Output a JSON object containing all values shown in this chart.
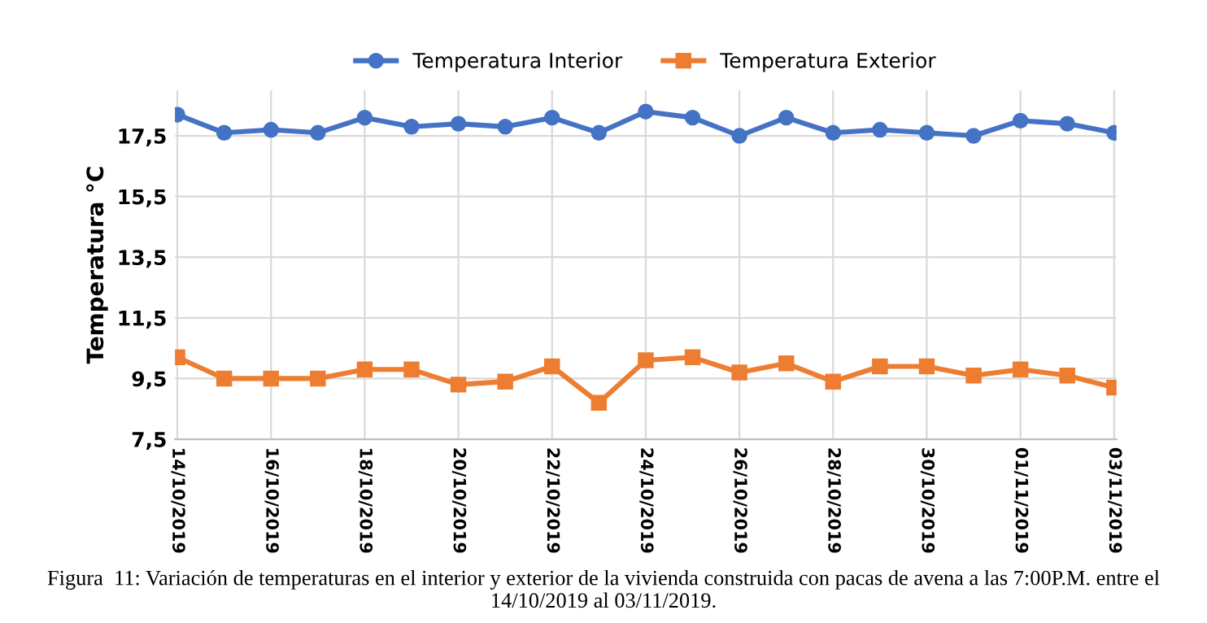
{
  "chart_data": {
    "type": "line",
    "ylabel": "Temperatura °C",
    "categories": [
      "14/10/2019",
      null,
      "16/10/2019",
      null,
      "18/10/2019",
      null,
      "20/10/2019",
      null,
      "22/10/2019",
      null,
      "24/10/2019",
      null,
      "26/10/2019",
      null,
      "28/10/2019",
      null,
      "30/10/2019",
      null,
      "01/11/2019",
      null,
      "03/11/2019"
    ],
    "series": [
      {
        "name": "Temperatura Interior",
        "color": "#4472c4",
        "marker": "circle",
        "values": [
          18.2,
          17.6,
          17.7,
          17.6,
          18.1,
          17.8,
          17.9,
          17.8,
          18.1,
          17.6,
          18.3,
          18.1,
          17.5,
          18.1,
          17.6,
          17.7,
          17.6,
          17.5,
          18.0,
          17.9,
          17.6
        ]
      },
      {
        "name": "Temperatura Exterior",
        "color": "#ed7d31",
        "marker": "square",
        "values": [
          10.2,
          9.5,
          9.5,
          9.5,
          9.8,
          9.8,
          9.3,
          9.4,
          9.9,
          8.7,
          10.1,
          10.2,
          9.7,
          10.0,
          9.4,
          9.9,
          9.9,
          9.6,
          9.8,
          9.6,
          9.2
        ]
      }
    ],
    "ylim": [
      7.5,
      19.0
    ],
    "yticks": [
      {
        "value": 7.5,
        "label": "7,5"
      },
      {
        "value": 9.5,
        "label": "9,5"
      },
      {
        "value": 11.5,
        "label": "11,5"
      },
      {
        "value": 13.5,
        "label": "13,5"
      },
      {
        "value": 15.5,
        "label": "15,5"
      },
      {
        "value": 17.5,
        "label": "17,5"
      }
    ],
    "grid": true,
    "legend": "top",
    "annotations": [
      "Figura  11: Variación de temperaturas en el interior y exterior de la vivienda construida con pacas de avena a las 7:00P.M. entre el 14/10/2019 al 03/11/2019."
    ]
  }
}
